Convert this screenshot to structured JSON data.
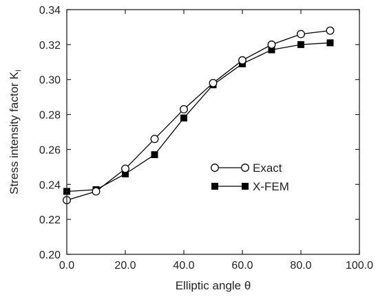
{
  "chart_data": {
    "type": "line",
    "xlabel": "Elliptic angle θ",
    "ylabel": "Stress intensity factor K",
    "ylabel_subscript": "I",
    "xlim": [
      0,
      100
    ],
    "ylim": [
      0.2,
      0.34
    ],
    "xticks": [
      "0.0",
      "20.0",
      "40.0",
      "60.0",
      "80.0",
      "100.0"
    ],
    "yticks": [
      "0.20",
      "0.22",
      "0.24",
      "0.26",
      "0.28",
      "0.30",
      "0.32",
      "0.34"
    ],
    "grid": false,
    "legend_position": "center-right",
    "series": [
      {
        "name": "Exact",
        "marker": "open-circle",
        "color": "#000000",
        "x": [
          0,
          10,
          20,
          30,
          40,
          50,
          60,
          70,
          80,
          90
        ],
        "y": [
          0.231,
          0.236,
          0.249,
          0.266,
          0.283,
          0.298,
          0.311,
          0.32,
          0.326,
          0.328
        ]
      },
      {
        "name": "X-FEM",
        "marker": "filled-square",
        "color": "#000000",
        "x": [
          0,
          10,
          20,
          30,
          40,
          50,
          60,
          70,
          80,
          90
        ],
        "y": [
          0.236,
          0.237,
          0.246,
          0.257,
          0.278,
          0.297,
          0.309,
          0.317,
          0.32,
          0.321
        ]
      }
    ]
  }
}
